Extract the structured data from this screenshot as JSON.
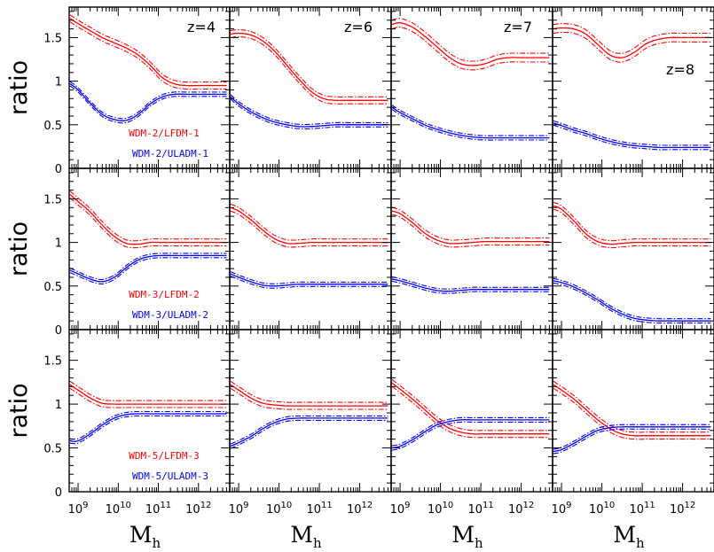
{
  "chart_data": {
    "type": "line",
    "layout": "3 rows x 4 columns grid of panels sharing axes",
    "xlabel": "M",
    "xlabel_sub": "h",
    "ylabel": "ratio",
    "xscale": "log",
    "xlim": [
      600000000,
      6000000000000
    ],
    "ylim": [
      0,
      1.85
    ],
    "x_tick_labels": [
      {
        "base": "10",
        "exp": "9",
        "value": 1000000000
      },
      {
        "base": "10",
        "exp": "10",
        "value": 10000000000
      },
      {
        "base": "10",
        "exp": "11",
        "value": 100000000000
      },
      {
        "base": "10",
        "exp": "12",
        "value": 1000000000000
      }
    ],
    "y_ticks": [
      {
        "value": 0,
        "label": "0"
      },
      {
        "value": 0.5,
        "label": "0.5"
      },
      {
        "value": 1,
        "label": "1"
      },
      {
        "value": 1.5,
        "label": "1.5"
      }
    ],
    "colors": {
      "lfdm": "#ff0000",
      "uladm": "#0000ff"
    },
    "line_style": "central curve with dot-dashed upper and lower bands",
    "redshift_labels": [
      "z=4",
      "z=6",
      "z=7",
      "z=8"
    ],
    "legends": [
      {
        "red": "WDM-2/LFDM-1",
        "blue": "WDM-2/ULADM-1"
      },
      {
        "red": "WDM-3/LFDM-2",
        "blue": "WDM-3/ULADM-2"
      },
      {
        "red": "WDM-5/LFDM-3",
        "blue": "WDM-5/ULADM-3"
      }
    ],
    "x_samples": [
      8.8,
      9.0,
      9.3,
      9.6,
      9.9,
      10.2,
      10.5,
      10.8,
      11.1,
      11.4,
      11.7,
      12.0,
      12.3,
      12.7
    ],
    "panels": [
      [
        {
          "red": [
            1.72,
            1.66,
            1.58,
            1.5,
            1.44,
            1.38,
            1.3,
            1.18,
            1.04,
            0.97,
            0.95,
            0.95,
            0.95,
            0.95
          ],
          "blue": [
            0.97,
            0.9,
            0.75,
            0.62,
            0.56,
            0.55,
            0.62,
            0.74,
            0.82,
            0.85,
            0.85,
            0.85,
            0.85,
            0.85
          ]
        },
        {
          "red": [
            1.54,
            1.55,
            1.53,
            1.46,
            1.34,
            1.18,
            1.02,
            0.88,
            0.8,
            0.78,
            0.78,
            0.78,
            0.78,
            0.78
          ],
          "blue": [
            0.82,
            0.74,
            0.65,
            0.58,
            0.53,
            0.5,
            0.48,
            0.48,
            0.49,
            0.5,
            0.5,
            0.5,
            0.5,
            0.5
          ],
          "red_band": 0.04
        },
        {
          "red": [
            1.65,
            1.67,
            1.62,
            1.52,
            1.4,
            1.28,
            1.2,
            1.18,
            1.2,
            1.25,
            1.27,
            1.27,
            1.27,
            1.27
          ],
          "blue": [
            0.7,
            0.64,
            0.57,
            0.5,
            0.45,
            0.41,
            0.38,
            0.36,
            0.35,
            0.35,
            0.35,
            0.35,
            0.35,
            0.35
          ],
          "red_band": 0.05
        },
        {
          "red": [
            1.6,
            1.61,
            1.6,
            1.54,
            1.42,
            1.3,
            1.27,
            1.33,
            1.43,
            1.48,
            1.5,
            1.5,
            1.5,
            1.5
          ],
          "blue": [
            0.52,
            0.49,
            0.44,
            0.4,
            0.35,
            0.31,
            0.28,
            0.26,
            0.25,
            0.24,
            0.24,
            0.24,
            0.24,
            0.24
          ],
          "red_band": 0.05
        }
      ],
      [
        {
          "red": [
            1.55,
            1.47,
            1.35,
            1.2,
            1.07,
            0.99,
            0.98,
            1.0,
            1.0,
            1.0,
            1.0,
            1.0,
            1.0,
            1.0
          ],
          "blue": [
            0.68,
            0.64,
            0.58,
            0.55,
            0.6,
            0.71,
            0.8,
            0.84,
            0.85,
            0.85,
            0.85,
            0.85,
            0.85,
            0.85
          ],
          "red_band": 0.04
        },
        {
          "red": [
            1.4,
            1.36,
            1.26,
            1.14,
            1.04,
            0.99,
            0.99,
            1.0,
            1.0,
            1.0,
            1.0,
            1.0,
            1.0,
            1.0
          ],
          "blue": [
            0.64,
            0.6,
            0.55,
            0.51,
            0.5,
            0.51,
            0.52,
            0.52,
            0.52,
            0.52,
            0.52,
            0.52,
            0.52,
            0.52
          ],
          "red_band": 0.04
        },
        {
          "red": [
            1.36,
            1.33,
            1.23,
            1.11,
            1.03,
            0.99,
            0.99,
            1.0,
            1.01,
            1.01,
            1.01,
            1.01,
            1.01,
            1.01
          ],
          "blue": [
            0.58,
            0.56,
            0.52,
            0.48,
            0.45,
            0.44,
            0.45,
            0.46,
            0.46,
            0.46,
            0.46,
            0.46,
            0.46,
            0.46
          ],
          "red_band": 0.04
        },
        {
          "red": [
            1.42,
            1.38,
            1.25,
            1.1,
            1.01,
            0.98,
            0.99,
            1.0,
            1.0,
            1.0,
            1.0,
            1.0,
            1.0,
            1.0
          ],
          "blue": [
            0.56,
            0.54,
            0.49,
            0.42,
            0.34,
            0.25,
            0.18,
            0.13,
            0.11,
            0.1,
            0.1,
            0.1,
            0.1,
            0.1
          ],
          "red_band": 0.04
        }
      ],
      [
        {
          "red": [
            1.22,
            1.16,
            1.07,
            1.01,
            1.0,
            1.0,
            1.0,
            1.0,
            1.0,
            1.0,
            1.0,
            1.0,
            1.0,
            1.0
          ],
          "blue": [
            0.58,
            0.58,
            0.66,
            0.76,
            0.84,
            0.88,
            0.89,
            0.89,
            0.89,
            0.89,
            0.89,
            0.89,
            0.89,
            0.89
          ],
          "red_band": 0.04
        },
        {
          "red": [
            1.22,
            1.16,
            1.07,
            1.01,
            0.99,
            0.98,
            0.98,
            0.98,
            0.98,
            0.98,
            0.98,
            0.98,
            0.98,
            0.98
          ],
          "blue": [
            0.52,
            0.56,
            0.63,
            0.72,
            0.79,
            0.83,
            0.84,
            0.84,
            0.84,
            0.84,
            0.84,
            0.84,
            0.84,
            0.84
          ],
          "red_band": 0.04
        },
        {
          "red": [
            1.24,
            1.17,
            1.06,
            0.94,
            0.82,
            0.73,
            0.68,
            0.66,
            0.66,
            0.66,
            0.66,
            0.66,
            0.66,
            0.66
          ],
          "blue": [
            0.5,
            0.52,
            0.59,
            0.68,
            0.76,
            0.8,
            0.82,
            0.82,
            0.82,
            0.82,
            0.82,
            0.82,
            0.82,
            0.82
          ],
          "red_band": 0.04
        },
        {
          "red": [
            1.22,
            1.16,
            1.06,
            0.94,
            0.82,
            0.72,
            0.66,
            0.64,
            0.64,
            0.64,
            0.64,
            0.64,
            0.64,
            0.64
          ],
          "blue": [
            0.46,
            0.48,
            0.55,
            0.63,
            0.7,
            0.73,
            0.74,
            0.74,
            0.74,
            0.74,
            0.74,
            0.74,
            0.74,
            0.74
          ],
          "red_band": 0.04
        }
      ]
    ]
  }
}
